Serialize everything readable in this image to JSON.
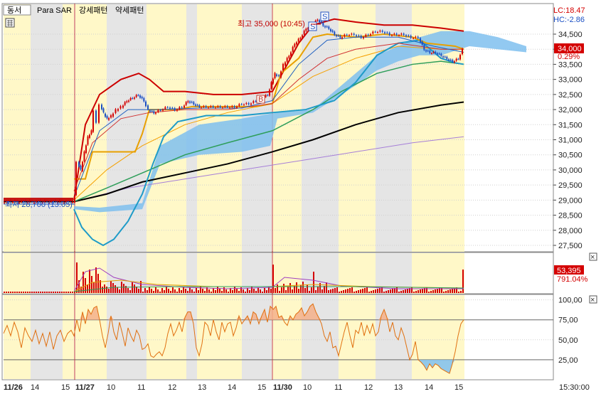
{
  "toolbar": {
    "stock_name": "동서",
    "indicators": [
      "Para SAR",
      "강세패턴",
      "약세패턴"
    ]
  },
  "status": {
    "lc": "LC:18.47",
    "hc": "HC:-2.86"
  },
  "annotations": {
    "high_label": "최고 35,000 (10:45)",
    "low_label": "최저 28,700 (13:05)",
    "sell_marker": "S",
    "buy_marker": "B"
  },
  "price_panel": {
    "current_price": "34,000",
    "change_pct": "0.29%",
    "y_ticks": [
      "34,500",
      "34,000",
      "33,500",
      "33,000",
      "32,500",
      "32,000",
      "31,500",
      "31,000",
      "30,500",
      "30,000",
      "29,500",
      "29,000",
      "28,500",
      "28,000",
      "27,500"
    ],
    "y_tick_values": [
      34500,
      34000,
      33500,
      33000,
      32500,
      32000,
      31500,
      31000,
      30500,
      30000,
      29500,
      29000,
      28500,
      28000,
      27500
    ],
    "ylim": [
      27300,
      35500
    ],
    "colors": {
      "up": "#d40000",
      "down": "#1a4fc4",
      "bollinger": "#d40000",
      "ma_black": "#000000",
      "ma_green": "#2e9e5a",
      "ma_purple": "#a67fd8",
      "ma_orange": "#f5a000",
      "ma_teal": "#1e9bc8",
      "cloud": "#7fbfee"
    }
  },
  "volume_panel": {
    "current_volume": "53,395",
    "volume_pct": "791.04%"
  },
  "oscillator_panel": {
    "y_ticks": [
      "100,00",
      "75,00",
      "50,00",
      "25,00"
    ],
    "y_tick_values": [
      100,
      75,
      50,
      25
    ],
    "ylim": [
      0,
      105
    ]
  },
  "time_axis": {
    "labels": [
      "11/26",
      "14",
      "15",
      "11/27",
      "10",
      "11",
      "12",
      "13",
      "14",
      "15",
      "11/30",
      "10",
      "11",
      "12",
      "13",
      "14",
      "15"
    ],
    "time_label": "15:30:00"
  },
  "chart_data": {
    "type": "candlestick",
    "x_unit": "intraday time (11/26 14:00 – 11/30 15:30)",
    "y_unit": "KRW",
    "ylim": [
      27300,
      35500
    ],
    "key_points": [
      {
        "time": "11/26 14:00",
        "price": 28950
      },
      {
        "time": "11/26 15:00",
        "price": 28950
      },
      {
        "time": "11/27 09:00",
        "price": 29000
      },
      {
        "time": "11/27 09:30",
        "price": 30500
      },
      {
        "time": "11/27 10:00",
        "price": 32200
      },
      {
        "time": "11/27 11:00",
        "price": 32400
      },
      {
        "time": "11/27 12:00",
        "price": 32100
      },
      {
        "time": "11/27 13:00",
        "price": 32100
      },
      {
        "time": "11/27 14:00",
        "price": 32100
      },
      {
        "time": "11/27 15:00",
        "price": 32300
      },
      {
        "time": "11/30 09:00",
        "price": 33000
      },
      {
        "time": "11/30 10:45",
        "price": 35000
      },
      {
        "time": "11/30 11:00",
        "price": 34600
      },
      {
        "time": "11/30 12:00",
        "price": 34400
      },
      {
        "time": "11/30 13:00",
        "price": 34500
      },
      {
        "time": "11/30 14:00",
        "price": 34000
      },
      {
        "time": "11/30 15:00",
        "price": 33600
      },
      {
        "time": "11/30 15:30",
        "price": 34000
      }
    ],
    "high": {
      "time": "10:45",
      "price": 35000
    },
    "low": {
      "time": "13:05",
      "price": 28700
    }
  }
}
